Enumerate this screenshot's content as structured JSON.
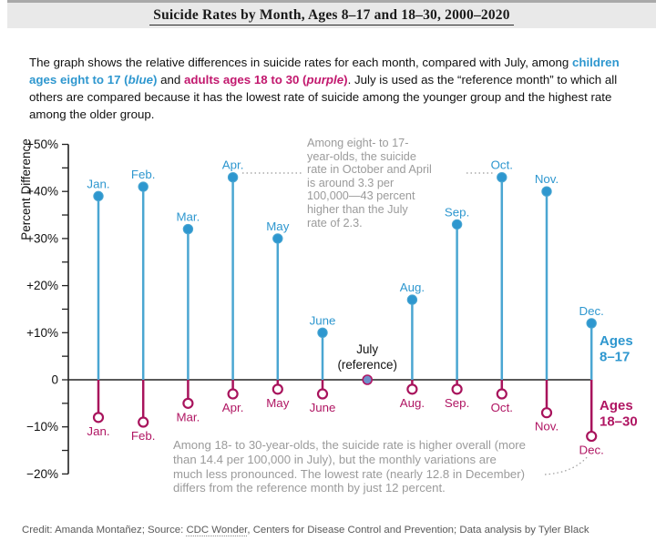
{
  "header": {
    "title": "Suicide Rates by Month, Ages 8–17 and 18–30, 2000–2020"
  },
  "intro": {
    "t1": "The graph shows the relative differences in suicide rates for each month, compared with July, among ",
    "blue_pre": "children ages eight to 17 (",
    "blue_it": "blue",
    "blue_close": ")",
    "mid": " and ",
    "purple_pre": "adults ages 18 to 30 (",
    "purple_it": "purple",
    "purple_close": ")",
    "t2": ". July is used as the “reference month” to which all others are compared because it has the lowest rate of suicide among the younger group and the highest rate among the older group."
  },
  "chart_data": {
    "type": "lollipop",
    "title": "Suicide Rates by Month, Ages 8–17 and 18–30, 2000–2020",
    "ylabel": "Percent Difference",
    "ylim": [
      -20,
      50
    ],
    "yticks": [
      50,
      40,
      30,
      20,
      10,
      0,
      -10,
      -20
    ],
    "ytick_labels": [
      "+50%",
      "+40%",
      "+30%",
      "+20%",
      "+10%",
      "0",
      "−10%",
      "−20%"
    ],
    "minor_tick_step": 5,
    "grid": false,
    "categories": [
      "Jan.",
      "Feb.",
      "Mar.",
      "Apr.",
      "May",
      "June",
      "July",
      "Aug.",
      "Sep.",
      "Oct.",
      "Nov.",
      "Dec."
    ],
    "reference_month_index": 6,
    "reference_label_lines": [
      "July",
      "(reference)"
    ],
    "legend_position": "right",
    "series": [
      {
        "name": "Ages 8–17",
        "legend_lines": [
          "Ages",
          "8–17"
        ],
        "color": "#2e97cf",
        "stem_color": "#4aa6d2",
        "marker": "filled",
        "values": [
          39,
          41,
          32,
          43,
          30,
          10,
          0,
          17,
          33,
          43,
          40,
          12
        ]
      },
      {
        "name": "Ages 18–30",
        "legend_lines": [
          "Ages",
          "18–30"
        ],
        "color": "#b01663",
        "stem_color": "#a8135c",
        "marker": "open",
        "values": [
          -8,
          -9,
          -5,
          -3,
          -2,
          -3,
          0,
          -2,
          -2,
          -3,
          -7,
          -12
        ]
      }
    ],
    "annotations": [
      {
        "id": "young",
        "text": "Among eight- to 17-\nyear-olds, the suicide\nrate in October and April\nis around 3.3 per\n100,000—43 percent\nhigher than the July\nrate of 2.3."
      },
      {
        "id": "adult",
        "text": "Among 18- to 30-year-olds, the suicide rate is higher overall (more\nthan 14.4 per 100,000 in July), but the monthly variations are\nmuch less pronounced. The lowest rate (nearly 12.8 in December)\ndiffers from the reference month by just 12 percent."
      }
    ]
  },
  "credit": {
    "pre": "Credit: Amanda Montañez; Source: ",
    "link": "CDC Wonder",
    "post": ", Centers for Disease Control and Prevention; Data analysis by Tyler Black"
  },
  "colors": {
    "accent_blue": "#2e97cf",
    "accent_purple": "#b01663",
    "annotation_gray": "#9b9b9b",
    "axis_black": "#222222",
    "reference_dot_fill": "#6f8fca"
  }
}
